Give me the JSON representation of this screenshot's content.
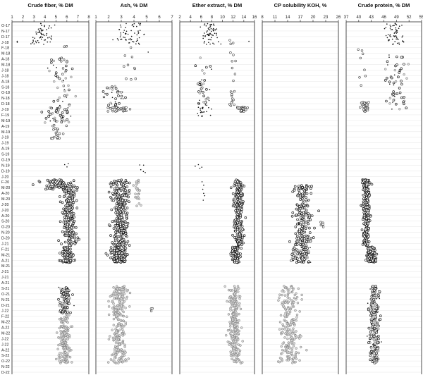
{
  "chart_data": {
    "type": "scatter",
    "months": [
      "O-17",
      "N-17",
      "D-17",
      "J-18",
      "F-18",
      "M-18",
      "A-18",
      "M-18",
      "J-18",
      "J-18",
      "A-18",
      "S-18",
      "O-18",
      "N-18",
      "D-18",
      "J-19",
      "F-19",
      "M-19",
      "A-19",
      "M-19",
      "J-19",
      "J-19",
      "A-19",
      "S-19",
      "O-19",
      "N-19",
      "D-19",
      "J-20",
      "F-20",
      "M-20",
      "A-20",
      "M-20",
      "J-20",
      "J-20",
      "A-20",
      "S-20",
      "O-20",
      "N-20",
      "D-20",
      "J-21",
      "F-21",
      "M-21",
      "A-21",
      "M-21",
      "J-21",
      "J-21",
      "A-21",
      "S-21",
      "O-21",
      "N-21",
      "D-21",
      "J-22",
      "F-22",
      "M-22",
      "A-22",
      "M-22",
      "J-22",
      "J-22",
      "A-22",
      "S-22",
      "O-22",
      "N-22",
      "D-22"
    ],
    "panels": [
      {
        "title": "Crude fiber, % DM",
        "xlim": [
          1,
          8
        ],
        "ticks": [
          "1",
          "2",
          "3",
          "4",
          "5",
          "6",
          "7",
          "8"
        ],
        "segments": [
          {
            "from": "O-17",
            "to": "J-18",
            "center": 3.8,
            "spread": 0.9,
            "n": 60,
            "style": "star"
          },
          {
            "from": "J-18",
            "to": "J-18",
            "center": 1.5,
            "spread": 0.2,
            "n": 2,
            "style": "star"
          },
          {
            "from": "J-18",
            "to": "S-18",
            "center": 5.8,
            "spread": 0.4,
            "n": 8,
            "style": "open"
          },
          {
            "from": "A-18",
            "to": "D-18",
            "center": 5.4,
            "spread": 1.1,
            "n": 40,
            "style": "mixed"
          },
          {
            "from": "J-19",
            "to": "M-19",
            "center": 5.2,
            "spread": 1.3,
            "n": 45,
            "style": "mixed"
          },
          {
            "from": "A-19",
            "to": "J-19",
            "center": 5.1,
            "spread": 0.5,
            "n": 20,
            "style": "open"
          },
          {
            "from": "N-19",
            "to": "N-19",
            "center": 6.0,
            "spread": 0.3,
            "n": 3,
            "style": "star"
          },
          {
            "from": "F-20",
            "to": "M-20",
            "center": 5.0,
            "spread": 1.0,
            "n": 70,
            "style": "dark"
          },
          {
            "from": "M-20",
            "to": "J-21",
            "center": 6.2,
            "spread": 0.55,
            "n": 220,
            "style": "dark"
          },
          {
            "from": "F-21",
            "to": "A-21",
            "center": 6.0,
            "spread": 0.4,
            "n": 120,
            "style": "dark"
          },
          {
            "from": "S-21",
            "to": "J-22",
            "center": 5.8,
            "spread": 0.45,
            "n": 110,
            "style": "mixed"
          },
          {
            "from": "F-22",
            "to": "O-22",
            "center": 5.8,
            "spread": 0.45,
            "n": 170,
            "style": "gray"
          }
        ]
      },
      {
        "title": "Ash, % DM",
        "xlim": [
          1,
          7
        ],
        "ticks": [
          "1",
          "2",
          "3",
          "4",
          "5",
          "6",
          "7"
        ],
        "segments": [
          {
            "from": "O-17",
            "to": "J-18",
            "center": 3.6,
            "spread": 1.1,
            "n": 60,
            "style": "star"
          },
          {
            "from": "M-18",
            "to": "M-18",
            "center": 5.2,
            "spread": 0.1,
            "n": 1,
            "style": "star"
          },
          {
            "from": "J-18",
            "to": "S-18",
            "center": 3.5,
            "spread": 0.6,
            "n": 10,
            "style": "open"
          },
          {
            "from": "S-18",
            "to": "D-18",
            "center": 2.4,
            "spread": 0.7,
            "n": 35,
            "style": "mixed"
          },
          {
            "from": "J-19",
            "to": "J-19",
            "center": 2.8,
            "spread": 0.7,
            "n": 35,
            "style": "open"
          },
          {
            "from": "N-19",
            "to": "D-19",
            "center": 4.7,
            "spread": 0.3,
            "n": 5,
            "style": "star"
          },
          {
            "from": "F-20",
            "to": "J-21",
            "center": 2.9,
            "spread": 0.55,
            "n": 280,
            "style": "dark"
          },
          {
            "from": "F-20",
            "to": "J-20",
            "center": 4.3,
            "spread": 0.2,
            "n": 25,
            "style": "gray"
          },
          {
            "from": "F-21",
            "to": "A-21",
            "center": 2.8,
            "spread": 0.5,
            "n": 130,
            "style": "dark"
          },
          {
            "from": "S-21",
            "to": "O-22",
            "center": 2.8,
            "spread": 0.55,
            "n": 260,
            "style": "gray"
          },
          {
            "from": "J-22",
            "to": "J-22",
            "center": 5.5,
            "spread": 0.2,
            "n": 4,
            "style": "open"
          }
        ]
      },
      {
        "title": "Ether extract, % DM",
        "xlim": [
          2,
          16
        ],
        "ticks": [
          "2",
          "4",
          "6",
          "8",
          "10",
          "12",
          "14",
          "16"
        ],
        "segments": [
          {
            "from": "O-17",
            "to": "J-18",
            "center": 7.6,
            "spread": 1.4,
            "n": 60,
            "style": "star"
          },
          {
            "from": "J-18",
            "to": "J-18",
            "center": 15.0,
            "spread": 0.2,
            "n": 1,
            "style": "star"
          },
          {
            "from": "J-18",
            "to": "S-18",
            "center": 11.8,
            "spread": 0.6,
            "n": 10,
            "style": "open"
          },
          {
            "from": "A-18",
            "to": "D-18",
            "center": 6.3,
            "spread": 1.3,
            "n": 35,
            "style": "mixed"
          },
          {
            "from": "O-18",
            "to": "D-18",
            "center": 11.8,
            "spread": 0.5,
            "n": 12,
            "style": "open"
          },
          {
            "from": "J-19",
            "to": "F-19",
            "center": 6.2,
            "spread": 1.2,
            "n": 20,
            "style": "star"
          },
          {
            "from": "J-19",
            "to": "J-19",
            "center": 13.5,
            "spread": 0.8,
            "n": 30,
            "style": "open"
          },
          {
            "from": "N-19",
            "to": "D-19",
            "center": 5.8,
            "spread": 0.5,
            "n": 4,
            "style": "star"
          },
          {
            "from": "F-20",
            "to": "J-21",
            "center": 13.0,
            "spread": 0.7,
            "n": 250,
            "style": "dark"
          },
          {
            "from": "F-20",
            "to": "J-20",
            "center": 6.5,
            "spread": 0.4,
            "n": 6,
            "style": "star"
          },
          {
            "from": "F-21",
            "to": "A-21",
            "center": 12.5,
            "spread": 0.6,
            "n": 120,
            "style": "dark"
          },
          {
            "from": "S-21",
            "to": "O-22",
            "center": 12.3,
            "spread": 0.9,
            "n": 250,
            "style": "gray"
          }
        ]
      },
      {
        "title": "CP solubility KOH, %",
        "xlim": [
          8,
          26
        ],
        "ticks": [
          "8",
          "11",
          "14",
          "17",
          "20",
          "23",
          "26"
        ],
        "segments": [
          {
            "from": "M-20",
            "to": "J-21",
            "center": 17.5,
            "spread": 1.8,
            "n": 180,
            "style": "dark"
          },
          {
            "from": "S-20",
            "to": "O-20",
            "center": 22.0,
            "spread": 0.6,
            "n": 6,
            "style": "open"
          },
          {
            "from": "F-21",
            "to": "A-21",
            "center": 17.2,
            "spread": 1.8,
            "n": 100,
            "style": "mixed"
          },
          {
            "from": "S-21",
            "to": "O-22",
            "center": 14.5,
            "spread": 2.0,
            "n": 220,
            "style": "gray"
          }
        ]
      },
      {
        "title": "Crude protein, % DM",
        "xlim": [
          37,
          55
        ],
        "ticks": [
          "37",
          "40",
          "43",
          "46",
          "49",
          "52",
          "55"
        ],
        "segments": [
          {
            "from": "O-17",
            "to": "J-18",
            "center": 48.5,
            "spread": 2.0,
            "n": 55,
            "style": "star"
          },
          {
            "from": "M-18",
            "to": "M-18",
            "center": 47.0,
            "spread": 0.2,
            "n": 1,
            "style": "star"
          },
          {
            "from": "J-18",
            "to": "S-18",
            "center": 41.0,
            "spread": 0.6,
            "n": 8,
            "style": "open"
          },
          {
            "from": "A-18",
            "to": "J-19",
            "center": 49.0,
            "spread": 2.2,
            "n": 55,
            "style": "mixed"
          },
          {
            "from": "D-18",
            "to": "J-19",
            "center": 41.5,
            "spread": 0.8,
            "n": 35,
            "style": "open"
          },
          {
            "from": "F-20",
            "to": "J-21",
            "center": 41.8,
            "spread": 0.7,
            "n": 250,
            "style": "dark"
          },
          {
            "from": "F-21",
            "to": "A-21",
            "center": 43.0,
            "spread": 0.8,
            "n": 120,
            "style": "dark"
          },
          {
            "from": "S-21",
            "to": "O-22",
            "center": 43.6,
            "spread": 1.0,
            "n": 240,
            "style": "mixed"
          }
        ]
      }
    ]
  }
}
